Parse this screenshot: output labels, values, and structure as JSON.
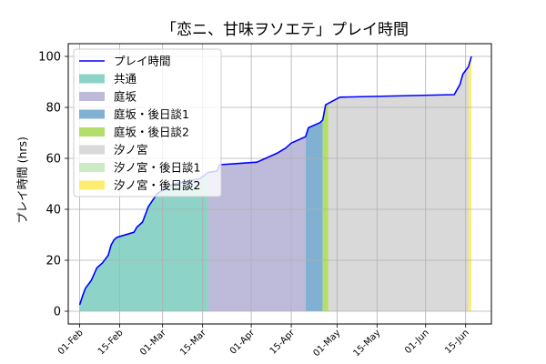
{
  "chart_data": {
    "type": "area",
    "title": "「恋ニ、甘味ヲソエテ」プレイ時間",
    "xlabel": "",
    "ylabel": "プレイ時間 (hrs)",
    "x_range": [
      "2024-01-28",
      "2024-06-24"
    ],
    "ylim": [
      -5,
      105
    ],
    "grid": true,
    "legend_position": "upper-left",
    "x_ticks": [
      {
        "date": "2024-02-01",
        "label": "01-Feb"
      },
      {
        "date": "2024-02-15",
        "label": "15-Feb"
      },
      {
        "date": "2024-03-01",
        "label": "01-Mar"
      },
      {
        "date": "2024-03-15",
        "label": "15-Mar"
      },
      {
        "date": "2024-04-01",
        "label": "01-Apr"
      },
      {
        "date": "2024-04-15",
        "label": "15-Apr"
      },
      {
        "date": "2024-05-01",
        "label": "01-May"
      },
      {
        "date": "2024-05-15",
        "label": "15-May"
      },
      {
        "date": "2024-06-01",
        "label": "01-Jun"
      },
      {
        "date": "2024-06-15",
        "label": "15-Jun"
      }
    ],
    "y_ticks": [
      0,
      20,
      40,
      60,
      80,
      100
    ],
    "line_series": {
      "name": "プレイ時間",
      "color": "#0000ff",
      "points": [
        [
          "2024-02-01",
          2.5
        ],
        [
          "2024-02-02",
          6
        ],
        [
          "2024-02-03",
          9
        ],
        [
          "2024-02-05",
          12
        ],
        [
          "2024-02-07",
          17
        ],
        [
          "2024-02-09",
          19
        ],
        [
          "2024-02-11",
          22
        ],
        [
          "2024-02-12",
          26
        ],
        [
          "2024-02-13",
          28
        ],
        [
          "2024-02-14",
          29
        ],
        [
          "2024-02-20",
          31
        ],
        [
          "2024-02-21",
          33
        ],
        [
          "2024-02-23",
          35
        ],
        [
          "2024-02-25",
          41
        ],
        [
          "2024-02-28",
          46
        ],
        [
          "2024-03-03",
          49
        ],
        [
          "2024-03-05",
          50
        ],
        [
          "2024-03-10",
          51
        ],
        [
          "2024-03-14",
          52
        ],
        [
          "2024-03-17",
          54.5
        ],
        [
          "2024-03-20",
          55
        ],
        [
          "2024-03-21",
          57.5
        ],
        [
          "2024-04-03",
          58.5
        ],
        [
          "2024-04-06",
          60
        ],
        [
          "2024-04-10",
          62
        ],
        [
          "2024-04-13",
          64
        ],
        [
          "2024-04-15",
          66
        ],
        [
          "2024-04-19",
          68
        ],
        [
          "2024-04-20",
          68.5
        ],
        [
          "2024-04-21",
          72
        ],
        [
          "2024-04-25",
          74
        ],
        [
          "2024-04-26",
          75
        ],
        [
          "2024-04-27",
          81
        ],
        [
          "2024-05-02",
          84
        ],
        [
          "2024-06-11",
          85
        ],
        [
          "2024-06-13",
          89
        ],
        [
          "2024-06-14",
          93
        ],
        [
          "2024-06-15",
          94.5
        ],
        [
          "2024-06-16",
          96
        ],
        [
          "2024-06-17",
          100
        ]
      ]
    },
    "areas": [
      {
        "name": "共通",
        "color": "#8dd3c7",
        "start": "2024-02-01",
        "end": "2024-03-17"
      },
      {
        "name": "庭坂",
        "color": "#bebada",
        "start": "2024-03-17",
        "end": "2024-04-20"
      },
      {
        "name": "庭坂・後日談1",
        "color": "#80b1d3",
        "start": "2024-04-20",
        "end": "2024-04-26"
      },
      {
        "name": "庭坂・後日談2",
        "color": "#b3de69",
        "start": "2024-04-26",
        "end": "2024-04-28"
      },
      {
        "name": "汐ノ宮",
        "color": "#d9d9d9",
        "start": "2024-04-28",
        "end": "2024-06-16"
      },
      {
        "name": "汐ノ宮・後日談1",
        "color": "#ccebc5",
        "start": "2024-06-16",
        "end": "2024-06-16"
      },
      {
        "name": "汐ノ宮・後日談2",
        "color": "#ffed6f",
        "start": "2024-06-16",
        "end": "2024-06-17"
      }
    ]
  }
}
